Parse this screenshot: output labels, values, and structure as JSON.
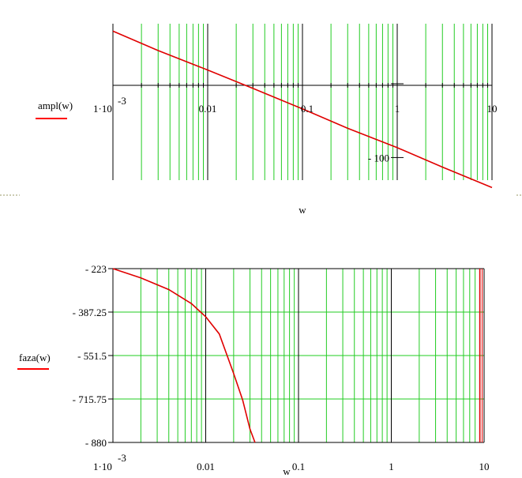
{
  "chart_data": [
    {
      "type": "line",
      "x_scale": "log",
      "xlim": [
        0.001,
        10
      ],
      "ylabel": "ampl(w)",
      "xlabel": "w",
      "x_tick_labels": [
        "1·10",
        "-3",
        "0.01",
        "0.1",
        "1",
        "10"
      ],
      "y_tick_labels": [
        "100"
      ],
      "y_tick_sign": "-",
      "grid": true,
      "series": [
        {
          "color": "#e00000",
          "x": [
            0.001,
            0.003,
            0.01,
            0.03,
            0.1,
            0.3,
            1,
            3,
            10
          ],
          "y": [
            53,
            34,
            15,
            -3,
            -23,
            -42,
            -61,
            -80,
            -100
          ]
        }
      ]
    },
    {
      "type": "line",
      "x_scale": "log",
      "xlim": [
        0.001,
        10
      ],
      "ylim": [
        -880,
        -223
      ],
      "ylabel": "faza(w)",
      "xlabel": "w",
      "x_tick_labels": [
        "1·10",
        "-3",
        "0.01",
        "0.1",
        "1",
        "10"
      ],
      "y_tick_labels": [
        "223",
        "387.25",
        "551.5",
        "715.75",
        "880"
      ],
      "y_tick_sign": "-",
      "grid": true,
      "series": [
        {
          "color": "#e00000",
          "x": [
            0.001,
            0.002,
            0.004,
            0.007,
            0.01,
            0.014,
            0.02,
            0.025,
            0.03,
            0.034
          ],
          "y": [
            -223,
            -258,
            -302,
            -355,
            -405,
            -470,
            -620,
            -720,
            -830,
            -880
          ]
        }
      ]
    }
  ]
}
